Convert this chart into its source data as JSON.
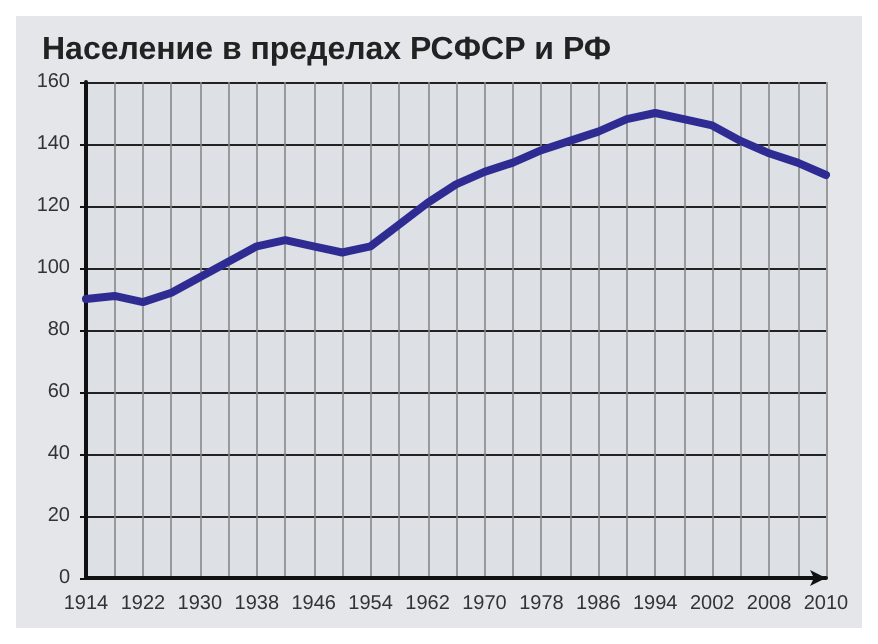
{
  "chart_data": {
    "type": "line",
    "title": "Население в пределах РСФСР и РФ",
    "categories": [
      "1914",
      null,
      "1922",
      null,
      "1930",
      null,
      "1938",
      null,
      "1946",
      null,
      "1954",
      null,
      "1962",
      null,
      "1970",
      null,
      "1978",
      null,
      "1986",
      null,
      "1994",
      null,
      "2002",
      null,
      "2008",
      null,
      "2010"
    ],
    "series": [
      {
        "color": "#2e2c93",
        "values": [
          90,
          91,
          89,
          92,
          97,
          102,
          107,
          109,
          107,
          105,
          107,
          114,
          121,
          127,
          131,
          134,
          138,
          141,
          144,
          148,
          150,
          148,
          146,
          141,
          137,
          134,
          130
        ]
      }
    ],
    "ylim": [
      0,
      160
    ],
    "yticks": [
      0,
      20,
      40,
      60,
      80,
      100,
      120,
      140,
      160
    ],
    "grid": true,
    "marker": "none",
    "line_style": "solid"
  }
}
